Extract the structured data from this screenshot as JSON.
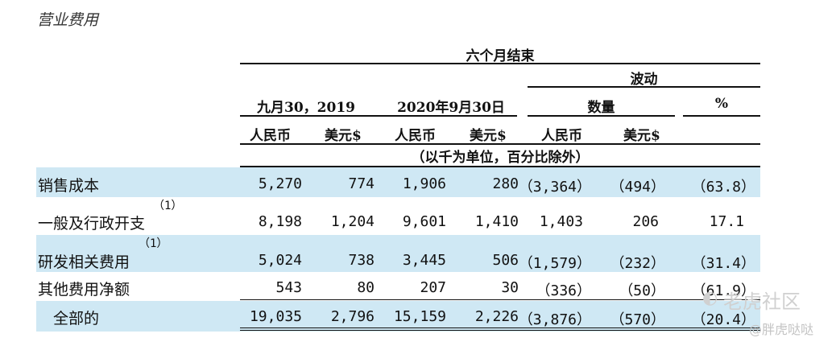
{
  "title": "营业费用",
  "header": {
    "six_months": "六个月结束",
    "fluctuation": "波动",
    "period1": "九月30，2019",
    "period2": "2020年9月30日",
    "quantity": "数量",
    "percent": "%",
    "rmb": "人民币",
    "usd": "美元$",
    "unit_note": "（以千为单位，百分比除外）"
  },
  "rows": [
    {
      "label": "销售成本",
      "note": "",
      "values": [
        "5,270",
        "774",
        "1,906",
        "280",
        "（3,364）",
        "（494）",
        "（63.8）"
      ]
    },
    {
      "label": "一般及行政开支",
      "note": "（1）",
      "values": [
        "8,198",
        "1,204",
        "9,601",
        "1,410",
        "1,403",
        "206",
        "17.1"
      ]
    },
    {
      "label": "研发相关费用",
      "note": "（1）",
      "values": [
        "5,024",
        "738",
        "3,445",
        "506",
        "（1,579）",
        "（232）",
        "（31.4）"
      ]
    },
    {
      "label": "其他费用净额",
      "note": "",
      "values": [
        "543",
        "80",
        "207",
        "30",
        "（336）",
        "（50）",
        "（61.9）"
      ]
    },
    {
      "label": "全部的",
      "note": "",
      "values": [
        "19,035",
        "2,796",
        "15,159",
        "2,226",
        "（3,876）",
        "（570）",
        "（20.4）"
      ]
    }
  ],
  "watermark": {
    "text1": "老虎社区",
    "text2": "@胖虎哒哒"
  },
  "colors": {
    "row_highlight": "#cfe8f4",
    "rule": "#111111"
  }
}
